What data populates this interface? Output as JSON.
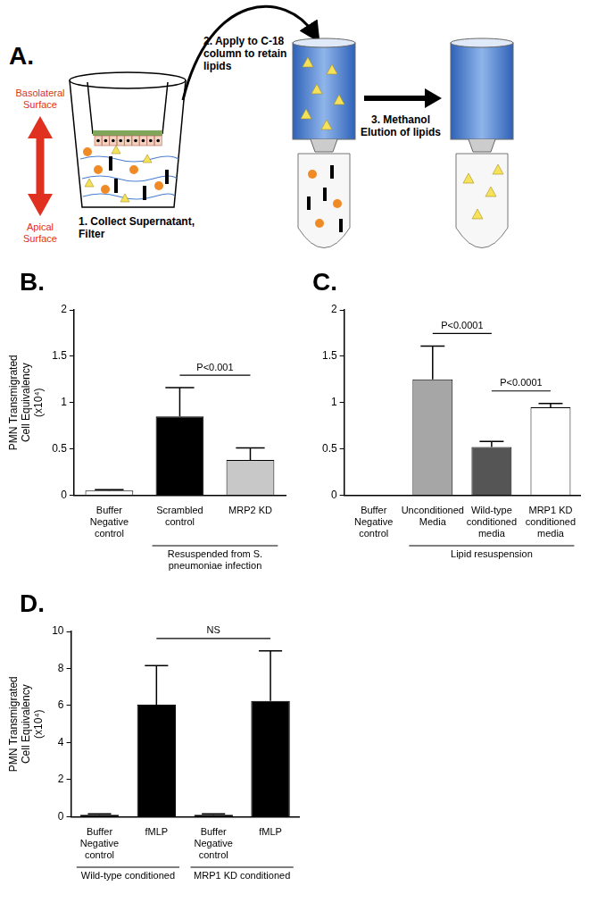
{
  "diagram": {
    "panel_label": "A.",
    "arrow_labels": {
      "top": "Basolateral Surface",
      "bottom": "Apical Surface"
    },
    "steps": [
      "1. Collect Supernatant, Filter",
      "2. Apply to C-18 column to retain lipids",
      "3. Methanol Elution of lipids"
    ]
  },
  "chart_data": [
    {
      "type": "bar",
      "title": "B.",
      "y_label": "PMN Transmigrated Cell Equivalency (x10⁴)",
      "categories": [
        "Buffer Negative control",
        "Scrambled control",
        "MRP2 KD"
      ],
      "values": [
        0.05,
        0.85,
        0.38
      ],
      "errors": [
        0.01,
        0.31,
        0.13
      ],
      "colors": [
        "#ffffff",
        "#000000",
        "#c8c8c8"
      ],
      "ylim": [
        0,
        2
      ],
      "yticks": [
        0,
        0.5,
        1,
        1.5,
        2
      ],
      "grid": false,
      "groups": [
        {
          "text": "Resuspended from S. pneumoniae infection",
          "categories": [
            1,
            2
          ]
        }
      ],
      "annotations": [
        {
          "text": "P<0.001",
          "between": [
            1,
            2
          ]
        }
      ]
    },
    {
      "type": "bar",
      "title": "C.",
      "categories": [
        "Buffer Negative control",
        "Unconditioned Media",
        "Wild-type conditioned media",
        "MRP1 KD conditioned media"
      ],
      "values": [
        0,
        1.25,
        0.52,
        0.95
      ],
      "errors": [
        0,
        0.36,
        0.06,
        0.04
      ],
      "colors": [
        "#ffffff",
        "#a6a6a6",
        "#555555",
        "#ffffff"
      ],
      "ylim": [
        0,
        2
      ],
      "yticks": [
        0,
        0.5,
        1,
        1.5,
        2
      ],
      "grid": false,
      "groups": [
        {
          "text": "Lipid resuspension",
          "categories": [
            1,
            3
          ]
        }
      ],
      "annotations": [
        {
          "text": "P<0.0001",
          "between": [
            1,
            2
          ]
        },
        {
          "text": "P<0.0001",
          "between": [
            2,
            3
          ]
        }
      ]
    },
    {
      "type": "bar",
      "title": "D.",
      "y_label": "PMN Transmigrated Cell Equivalency (x10⁴)",
      "categories": [
        "Buffer Negative control",
        "fMLP",
        "Buffer Negative control",
        "fMLP"
      ],
      "values": [
        0.1,
        6.05,
        0.1,
        6.25
      ],
      "errors": [
        0.05,
        2.1,
        0.05,
        2.7
      ],
      "colors": [
        "#000000",
        "#000000",
        "#000000",
        "#000000"
      ],
      "ylim": [
        0,
        10
      ],
      "yticks": [
        0,
        2,
        4,
        6,
        8,
        10
      ],
      "grid": false,
      "groups": [
        {
          "text": "Wild-type conditioned",
          "categories": [
            0,
            1
          ]
        },
        {
          "text": "MRP1 KD conditioned",
          "categories": [
            2,
            3
          ]
        }
      ],
      "annotations": [
        {
          "text": "NS",
          "between": [
            1,
            3
          ]
        }
      ]
    }
  ]
}
